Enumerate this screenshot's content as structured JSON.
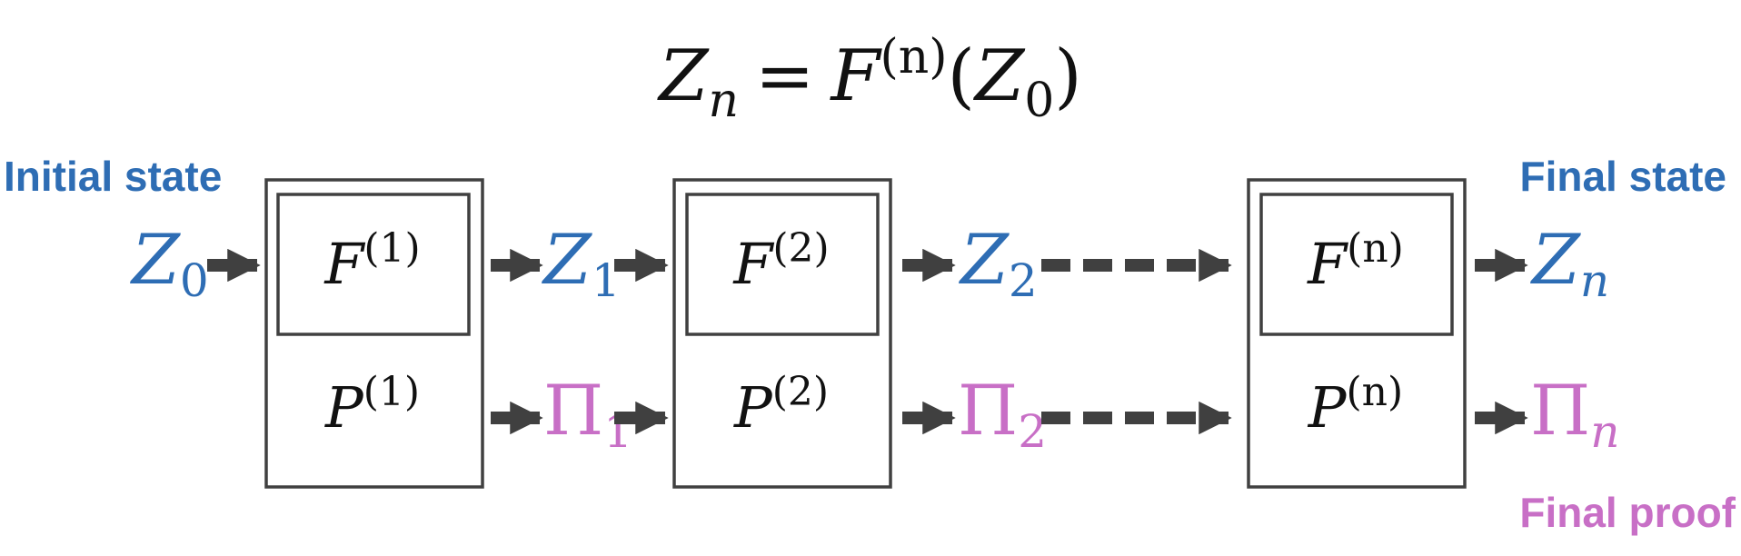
{
  "colors": {
    "state": "#2e6db4",
    "proof": "#c86fc6",
    "box": "#404040",
    "text": "#111111",
    "arrow": "#404040"
  },
  "equation": {
    "lhs_base": "Z",
    "lhs_sub": "n",
    "equals": "=",
    "fn_base": "F",
    "fn_sup": "(n)",
    "open_paren": "(",
    "arg_base": "Z",
    "arg_sub": "0",
    "close_paren": ")"
  },
  "labels": {
    "initial_state": "Initial state",
    "final_state": "Final state",
    "final_proof": "Final proof"
  },
  "stages": [
    {
      "f_base": "F",
      "f_sup": "(1)",
      "p_base": "P",
      "p_sup": "(1)"
    },
    {
      "f_base": "F",
      "f_sup": "(2)",
      "p_base": "P",
      "p_sup": "(2)"
    },
    {
      "f_base": "F",
      "f_sup": "(n)",
      "p_base": "P",
      "p_sup": "(n)"
    }
  ],
  "states": [
    {
      "base": "Z",
      "sub": "0"
    },
    {
      "base": "Z",
      "sub": "1"
    },
    {
      "base": "Z",
      "sub": "2"
    },
    {
      "base": "Z",
      "sub": "n"
    }
  ],
  "proofs": [
    {
      "base": "Π",
      "sub": "1"
    },
    {
      "base": "Π",
      "sub": "2"
    },
    {
      "base": "Π",
      "sub": "n"
    }
  ]
}
